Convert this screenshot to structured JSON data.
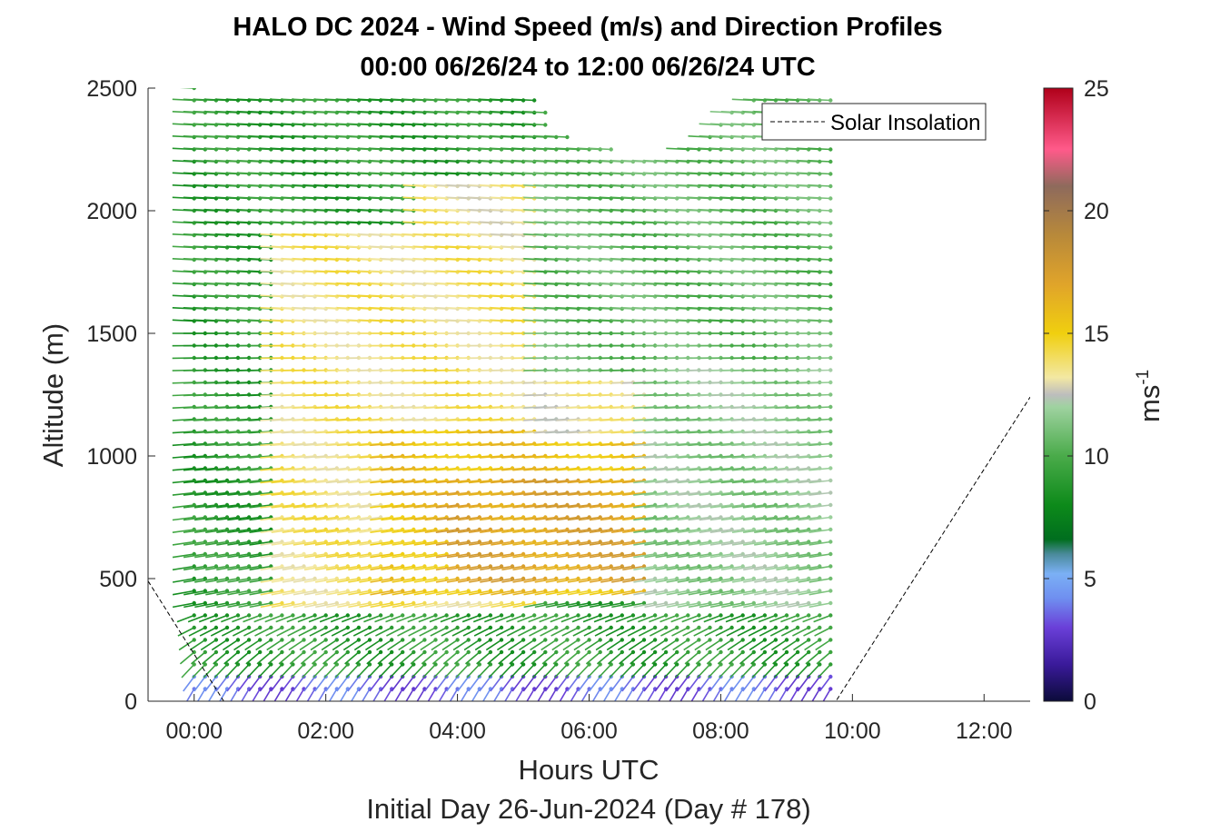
{
  "chart_data": {
    "type": "scatter",
    "title": "HALO DC 2024 - Wind Speed (m/s) and Direction Profiles",
    "subtitle": "00:00 06/26/24 to 12:00 06/26/24  UTC",
    "xlabel": "Hours UTC",
    "xlabel2": "Initial Day 26-Jun-2024 (Day # 178)",
    "ylabel": "Altitude (m)",
    "xlim_hours": [
      -0.7,
      12.7
    ],
    "ylim": [
      0,
      2500
    ],
    "x_ticks": [
      {
        "value": 0,
        "label": "00:00"
      },
      {
        "value": 2,
        "label": "02:00"
      },
      {
        "value": 4,
        "label": "04:00"
      },
      {
        "value": 6,
        "label": "06:00"
      },
      {
        "value": 8,
        "label": "08:00"
      },
      {
        "value": 10,
        "label": "10:00"
      },
      {
        "value": 12,
        "label": "12:00"
      }
    ],
    "y_ticks": [
      {
        "value": 0,
        "label": "0"
      },
      {
        "value": 500,
        "label": "500"
      },
      {
        "value": 1000,
        "label": "1000"
      },
      {
        "value": 1500,
        "label": "1500"
      },
      {
        "value": 2000,
        "label": "2000"
      },
      {
        "value": 2500,
        "label": "2500"
      }
    ],
    "grid": false,
    "legend": {
      "placement": "top-right",
      "entries": [
        {
          "label": "Solar Insolation",
          "style": "dashed",
          "color": "#000000"
        }
      ]
    },
    "colorbar": {
      "label": "ms",
      "label_superscript": "-1",
      "range": [
        0,
        25
      ],
      "ticks": [
        {
          "value": 0,
          "label": "0"
        },
        {
          "value": 5,
          "label": "5"
        },
        {
          "value": 10,
          "label": "10"
        },
        {
          "value": 15,
          "label": "15"
        },
        {
          "value": 20,
          "label": "20"
        },
        {
          "value": 25,
          "label": "25"
        }
      ],
      "stops": [
        {
          "value": 0,
          "color": "#0b0b3a"
        },
        {
          "value": 1.5,
          "color": "#3a1a9a"
        },
        {
          "value": 3,
          "color": "#6a3fd8"
        },
        {
          "value": 4.2,
          "color": "#6f8ff0"
        },
        {
          "value": 5.2,
          "color": "#7bb0f5"
        },
        {
          "value": 6,
          "color": "#4a8a9a"
        },
        {
          "value": 6.6,
          "color": "#006e1e"
        },
        {
          "value": 8,
          "color": "#0d8a1a"
        },
        {
          "value": 10,
          "color": "#4aab4a"
        },
        {
          "value": 12,
          "color": "#9fd2a0"
        },
        {
          "value": 12.5,
          "color": "#bdbdbd"
        },
        {
          "value": 13.2,
          "color": "#f3e8a3"
        },
        {
          "value": 15,
          "color": "#f0cf0f"
        },
        {
          "value": 17,
          "color": "#e0a42a"
        },
        {
          "value": 19,
          "color": "#b8893a"
        },
        {
          "value": 21,
          "color": "#8e6a5c"
        },
        {
          "value": 22.5,
          "color": "#ff5a8a"
        },
        {
          "value": 25,
          "color": "#b0001a"
        }
      ]
    },
    "solar_insolation": {
      "style": "dashed",
      "points": [
        [
          -0.7,
          490
        ],
        [
          0.45,
          0
        ],
        [
          9.75,
          0
        ],
        [
          12.7,
          1240
        ]
      ]
    },
    "wind_barbs": {
      "description_note": "",
      "time_start_hours": 0.0,
      "time_step_hours": 0.1667,
      "profile_count": 59,
      "altitude_step_m": 50,
      "ceiling_m": [
        [
          0.0,
          2500
        ],
        [
          5.2,
          2480
        ],
        [
          5.5,
          2330
        ],
        [
          6.0,
          2250
        ],
        [
          6.5,
          2250
        ],
        [
          6.8,
          2200
        ],
        [
          7.5,
          2250
        ],
        [
          8.0,
          2380
        ],
        [
          8.5,
          2450
        ],
        [
          9.0,
          2480
        ],
        [
          9.8,
          2500
        ]
      ],
      "speed_regions": [
        {
          "t": [
            0.0,
            1.0
          ],
          "z": [
            0,
            150
          ],
          "speed": 4.5
        },
        {
          "t": [
            0.0,
            1.2
          ],
          "z": [
            150,
            2500
          ],
          "speed": 9.0
        },
        {
          "t": [
            1.2,
            5.2
          ],
          "z": [
            400,
            1900
          ],
          "speed": 13.8
        },
        {
          "t": [
            3.5,
            5.2
          ],
          "z": [
            1900,
            2100
          ],
          "speed": 13.5
        },
        {
          "t": [
            3.0,
            8.5
          ],
          "z": [
            450,
            1100
          ],
          "speed": 15.5
        },
        {
          "t": [
            4.0,
            8.5
          ],
          "z": [
            500,
            900
          ],
          "speed": 17.0
        },
        {
          "t": [
            5.2,
            7.0
          ],
          "z": [
            1100,
            1350
          ],
          "speed": 13.2
        },
        {
          "t": [
            5.2,
            9.8
          ],
          "z": [
            1350,
            2500
          ],
          "speed": 10.5
        },
        {
          "t": [
            7.0,
            9.8
          ],
          "z": [
            400,
            1350
          ],
          "speed": 11.5
        },
        {
          "t": [
            0.0,
            9.8
          ],
          "z": [
            0,
            120
          ],
          "speed": 3.5
        }
      ]
    }
  }
}
